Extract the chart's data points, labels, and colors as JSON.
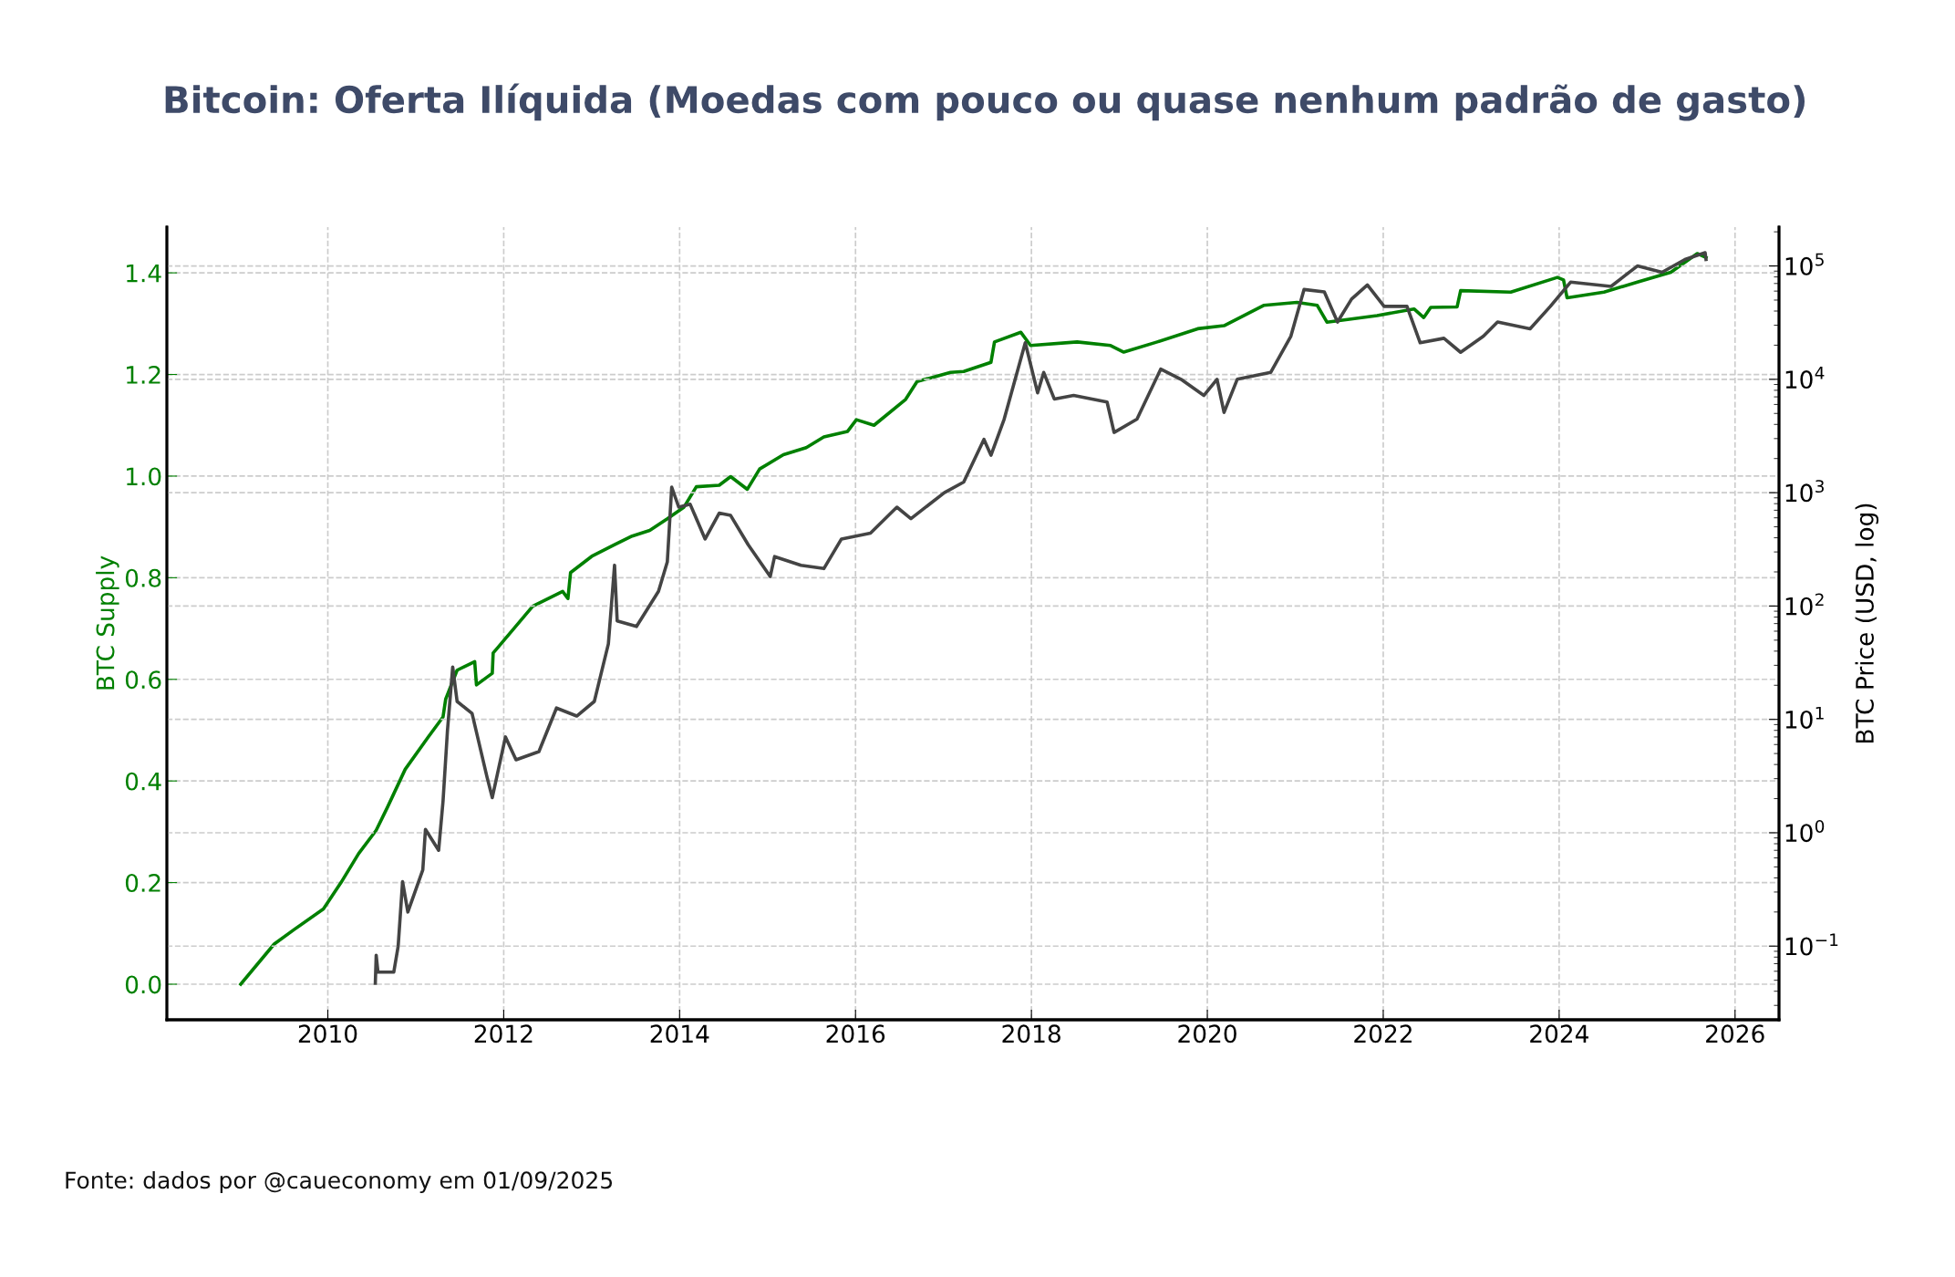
{
  "chart_data": {
    "type": "line",
    "title": "Bitcoin: Oferta Ilíquida (Moedas com pouco ou quase nenhum padrão de gasto)",
    "ylabel": "BTC Supply",
    "y2label": "BTC Price (USD, log)",
    "annotations": [
      "Fonte: dados por @caueconomy em 01/09/2025"
    ],
    "xlim": [
      2008.17,
      2026.5
    ],
    "xticks": [
      2010,
      2012,
      2014,
      2016,
      2018,
      2020,
      2022,
      2024,
      2026
    ],
    "ylim": [
      -0.07,
      1.49
    ],
    "yticks": [
      {
        "value": 0,
        "label": "0.0"
      },
      0.2,
      0.4,
      0.6,
      0.8,
      {
        "value": 1,
        "label": "1.0"
      },
      1.2,
      1.4
    ],
    "y2lim": [
      0.0224,
      220000
    ],
    "y2ticks": [
      {
        "value": 0.1,
        "label": "10$^{−1}$"
      },
      {
        "value": 1,
        "label": "10$^{0}$"
      },
      {
        "value": 10,
        "label": "10$^{1}$"
      },
      {
        "value": 100,
        "label": "10$^{2}$"
      },
      {
        "value": 1000,
        "label": "10$^{3}$"
      },
      {
        "value": 10000,
        "label": "10$^{4}$"
      },
      {
        "value": 100000,
        "label": "10$^{5}$"
      }
    ],
    "log": "y2",
    "grid": true,
    "marker": "none",
    "line_style": "solid",
    "series": [
      {
        "color": "#008000",
        "x": [
          2009.01,
          2009.39,
          2009.62,
          2009.95,
          2010.15,
          2010.35,
          2010.55,
          2010.68,
          2010.88,
          2011.14,
          2011.31,
          2011.34,
          2011.47,
          2011.67,
          2011.69,
          2011.87,
          2011.88,
          2011.94,
          2012.33,
          2012.67,
          2012.73,
          2012.76,
          2013.0,
          2013.26,
          2013.46,
          2013.66,
          2013.86,
          2014.05,
          2014.19,
          2014.45,
          2014.58,
          2014.77,
          2014.91,
          2015.18,
          2015.44,
          2015.64,
          2015.91,
          2016.01,
          2016.21,
          2016.57,
          2016.7,
          2017.08,
          2017.23,
          2017.54,
          2017.58,
          2017.88,
          2017.99,
          2018.52,
          2018.9,
          2019.05,
          2019.43,
          2019.89,
          2020.19,
          2020.64,
          2021.02,
          2021.25,
          2021.36,
          2021.93,
          2022.35,
          2022.46,
          2022.54,
          2022.84,
          2022.88,
          2023.45,
          2023.98,
          2024.05,
          2024.09,
          2024.51,
          2024.89,
          2025.27,
          2025.57,
          2025.67
        ],
        "values": [
          0.0,
          0.079,
          0.108,
          0.148,
          0.2,
          0.257,
          0.303,
          0.349,
          0.423,
          0.486,
          0.526,
          0.561,
          0.618,
          0.635,
          0.589,
          0.612,
          0.652,
          0.664,
          0.744,
          0.773,
          0.759,
          0.81,
          0.842,
          0.865,
          0.882,
          0.893,
          0.916,
          0.939,
          0.979,
          0.982,
          0.999,
          0.974,
          1.014,
          1.042,
          1.056,
          1.077,
          1.088,
          1.111,
          1.1,
          1.151,
          1.186,
          1.204,
          1.206,
          1.224,
          1.264,
          1.283,
          1.257,
          1.264,
          1.257,
          1.244,
          1.264,
          1.29,
          1.296,
          1.336,
          1.342,
          1.336,
          1.303,
          1.316,
          1.329,
          1.312,
          1.332,
          1.333,
          1.365,
          1.362,
          1.391,
          1.386,
          1.351,
          1.362,
          1.382,
          1.401,
          1.438,
          1.43
        ]
      },
      {
        "color": "#444444",
        "axis": "y2",
        "x": [
          2010.54,
          2010.55,
          2010.57,
          2010.75,
          2010.8,
          2010.85,
          2010.91,
          2011.08,
          2011.11,
          2011.26,
          2011.31,
          2011.36,
          2011.42,
          2011.47,
          2011.64,
          2011.81,
          2011.87,
          2012.02,
          2012.14,
          2012.4,
          2012.6,
          2012.83,
          2013.03,
          2013.19,
          2013.26,
          2013.29,
          2013.51,
          2013.76,
          2013.86,
          2013.91,
          2013.99,
          2014.12,
          2014.29,
          2014.45,
          2014.58,
          2014.78,
          2015.03,
          2015.08,
          2015.38,
          2015.64,
          2015.84,
          2016.17,
          2016.47,
          2016.63,
          2017.01,
          2017.23,
          2017.46,
          2017.54,
          2017.69,
          2017.93,
          2018.07,
          2018.14,
          2018.26,
          2018.48,
          2018.86,
          2018.94,
          2019.2,
          2019.47,
          2019.7,
          2019.96,
          2020.11,
          2020.19,
          2020.34,
          2020.72,
          2020.95,
          2021.1,
          2021.33,
          2021.48,
          2021.64,
          2021.82,
          2022.01,
          2022.27,
          2022.42,
          2022.69,
          2022.88,
          2023.14,
          2023.3,
          2023.67,
          2023.9,
          2024.13,
          2024.59,
          2024.89,
          2025.17,
          2025.43,
          2025.66,
          2025.67
        ],
        "values": [
          0.047,
          0.083,
          0.059,
          0.059,
          0.1,
          0.37,
          0.2,
          0.47,
          1.07,
          0.7,
          1.9,
          7.9,
          29,
          14.4,
          11.3,
          3.1,
          2.04,
          7.0,
          4.4,
          5.2,
          12.6,
          10.7,
          14.4,
          46.4,
          229,
          74,
          66,
          135,
          245,
          1120,
          745,
          790,
          390,
          660,
          630,
          347,
          182,
          273,
          229,
          214,
          390,
          440,
          745,
          590,
          1000,
          1240,
          2950,
          2140,
          4450,
          21000,
          7600,
          11500,
          6700,
          7200,
          6300,
          3400,
          4450,
          12300,
          10000,
          7200,
          10000,
          5100,
          10000,
          11500,
          24000,
          62000,
          59000,
          32000,
          51000,
          68000,
          44000,
          44000,
          21000,
          23000,
          17300,
          24000,
          32000,
          27900,
          44000,
          72000,
          66000,
          100000,
          88000,
          114000,
          131000,
          114000
        ]
      }
    ]
  }
}
